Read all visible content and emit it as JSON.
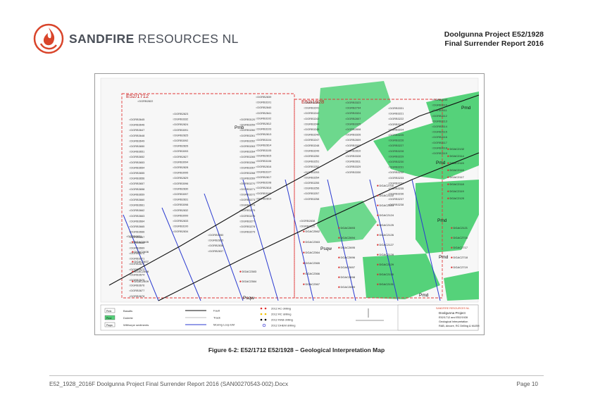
{
  "header": {
    "logo_bold": "SANDFIRE",
    "logo_rest": " RESOURCES NL",
    "title_line1": "Doolgunna Project E52/1928",
    "title_line2": "Final Surrender Report 2016"
  },
  "map": {
    "tenement_a": "E52/1712",
    "tenement_b": "E52/1928",
    "unit_labels": [
      "Pmb",
      "Pmd",
      "Pmd",
      "Pmd",
      "Pmd",
      "Psqw",
      "Psqw",
      "Pmd"
    ],
    "hole_labels": [
      "DGRB2822",
      "DGRB2823",
      "DGRB3332",
      "DGRB2824",
      "DGRB3091",
      "DGRB2825",
      "DGRB3092",
      "DGRB2826",
      "DGRB3093",
      "DGRB2827",
      "DGRB3094",
      "DGRB2828",
      "DGRB3095",
      "DGRB2829",
      "DGRB3096",
      "DGRB2830",
      "DGRB3097",
      "DGRB2831",
      "DGRB3098",
      "DGRB2832",
      "DGRB3099",
      "DGRB2833",
      "DGRB3100",
      "DGRB2834",
      "DGRB3645",
      "DGRB3646",
      "DGRB3647",
      "DGRB3648",
      "DGRB3649",
      "DGRB3650",
      "DGRB3651",
      "DGRB3652",
      "DGRB3653",
      "DGRB3654",
      "DGRB3655",
      "DGRB3656",
      "DGRB3657",
      "DGRB3658",
      "DGRB3659",
      "DGRB3660",
      "DGRB3661",
      "DGRB3662",
      "DGRB3663",
      "DGRB3664",
      "DGRB3665",
      "DGRB3666",
      "DGRB3667",
      "DGRB3668",
      "DGRB3669",
      "DGRB3670",
      "DGRB3671",
      "DGRB3672",
      "DGRB3673",
      "DGRB3674",
      "DGRB3675",
      "DGRB3676",
      "DGRB3677",
      "DGRB3678",
      "DGRB2839",
      "DGRB3101",
      "DGRB2840",
      "DGRB2841",
      "DGRB3102",
      "DGRB2812",
      "DGRB3103",
      "DGRB2813",
      "DGRB3104",
      "DGRB2814",
      "DGRB3105",
      "DGRB2815",
      "DGRB3106",
      "DGRB2816",
      "DGRB3107",
      "DGRB2817",
      "DGRB3108",
      "DGRB2818",
      "DGRB3109",
      "DGRB2819",
      "DGRB3240",
      "DGRB3241",
      "DGRB3242",
      "DGRB3243",
      "DGRB3244",
      "DGRB3245",
      "DGRB3246",
      "DGRB3247",
      "DGRB3248",
      "DGRB3249",
      "DGRB3250",
      "DGRB3251",
      "DGRB3252",
      "DGRB3253",
      "DGRB3254",
      "DGRB3255",
      "DGRB3256",
      "DGRB3257",
      "DGRB3258",
      "DGRB3323",
      "DGRB2794",
      "DGRB3324",
      "DGRB2807",
      "DGRB3325",
      "DGRB2808",
      "DGRB3326",
      "DGRB2809",
      "DGRB3327",
      "DGRB2810",
      "DGRB3328",
      "DGRB2811",
      "DGRB3329",
      "DGRB3330",
      "DGRB3331",
      "DGRB3221",
      "DGRB3222",
      "DGRB3223",
      "DGRB3224",
      "DGRB3225",
      "DGRB3226",
      "DGRB3227",
      "DGRB3228",
      "DGRB3229",
      "DGRB3230",
      "DGRB3231",
      "DGRB3232",
      "DGRB3233",
      "DGRB3234",
      "DGRB3235",
      "DGRB3236",
      "DGRB3237",
      "DGRB3238",
      "DGRB3239",
      "DGRB3110",
      "DGRB3111",
      "DGRB3112",
      "DGRB3113",
      "DGRB3114",
      "DGRB3115",
      "DGRB3116",
      "DGRB3117",
      "DGRB3118",
      "DGRB3119",
      "DGRB3120",
      "DGRB3259",
      "DGRB3260",
      "DGRB3261",
      "DGRB3262",
      "DGRB3263",
      "DGRB3264",
      "DGRB3265",
      "DGRB3266",
      "DGRB3267",
      "DGRB3268",
      "DGRB3269",
      "DGRB3270",
      "DGRB3271",
      "DGRB3272",
      "DGRB3273",
      "DGRB3274",
      "DGRB3275",
      "DGRB3276",
      "DGRB3277",
      "DGRB3278",
      "DGRB3279",
      "DGRB3280",
      "DGRB2835",
      "DGRB2836",
      "DGRB2837",
      "DGRB2838",
      "DGRB2820",
      "DGRB2821",
      "DGRB2888"
    ],
    "dgac_labels": [
      "DGAC2405",
      "DGAC2406",
      "DGAC2407",
      "DGAC2408",
      "DGAC2409",
      "DGAC2383",
      "DGAC2384",
      "DGAC2562",
      "DGAC2363",
      "DGAC2364",
      "DGAC2365",
      "DGAC2366",
      "DGAC2367",
      "DGAC2693",
      "DGAC2694",
      "DGAC2695",
      "DGAC2696",
      "DGAC2697",
      "DGAC2698",
      "DGAC2699",
      "DGAC2700",
      "DGAC2122",
      "DGAC2123",
      "DGAC2124",
      "DGAC2125",
      "DGAC2126",
      "DGAC2127",
      "DGAC2128",
      "DGAC2129",
      "DGAC2130",
      "DGAC2131",
      "DGAC2132",
      "DGAC2114",
      "DGAC2115",
      "DGAC2116",
      "DGAC2117",
      "DGAC2118",
      "DGAC2119",
      "DGAC2120",
      "DGAC2121",
      "DGAC2716",
      "DGAC2717",
      "DGAC2718",
      "DGAC2719",
      "DGAC2720"
    ],
    "legend": {
      "units": [
        {
          "code": "Pmb",
          "name": "Basalts",
          "color": "#ffffff"
        },
        {
          "code": "Pmd",
          "name": "Dolerite",
          "color": "#55d27a"
        },
        {
          "code": "Psqw",
          "name": "Wilthorpe sediments",
          "color": "#ffffff"
        }
      ],
      "lines": [
        {
          "name": "Fault",
          "style": "black"
        },
        {
          "name": "Track",
          "style": "grey"
        },
        {
          "name": "Moving Loop EM",
          "style": "blue"
        }
      ],
      "drilling": [
        {
          "name": "2012 AC drilling",
          "color": "#e03030"
        },
        {
          "name": "2012 RC drilling",
          "color": "#f0c000"
        },
        {
          "name": "2012 RAB drilling",
          "color": "#000000"
        },
        {
          "name": "2012 DHEM drilling",
          "color": "#2a2ad0"
        }
      ],
      "title_block": {
        "company": "SANDFIRE RESOURCES NL",
        "project": "Doolgunna Project",
        "tenements": "E52/1712 and E52/1928",
        "subject": "Geological Interpretation",
        "detail": "RAB, Aircore, RC Drilling & MLEM"
      }
    }
  },
  "caption": "Figure 6-2: E52/1712 E52/1928 – Geological Interpretation Map",
  "footer": {
    "left": "E52_1928_2016F Doolgunna Project Final Surrender Report 2016 (SAN00270543-002).Docx",
    "right": "Page 10"
  }
}
